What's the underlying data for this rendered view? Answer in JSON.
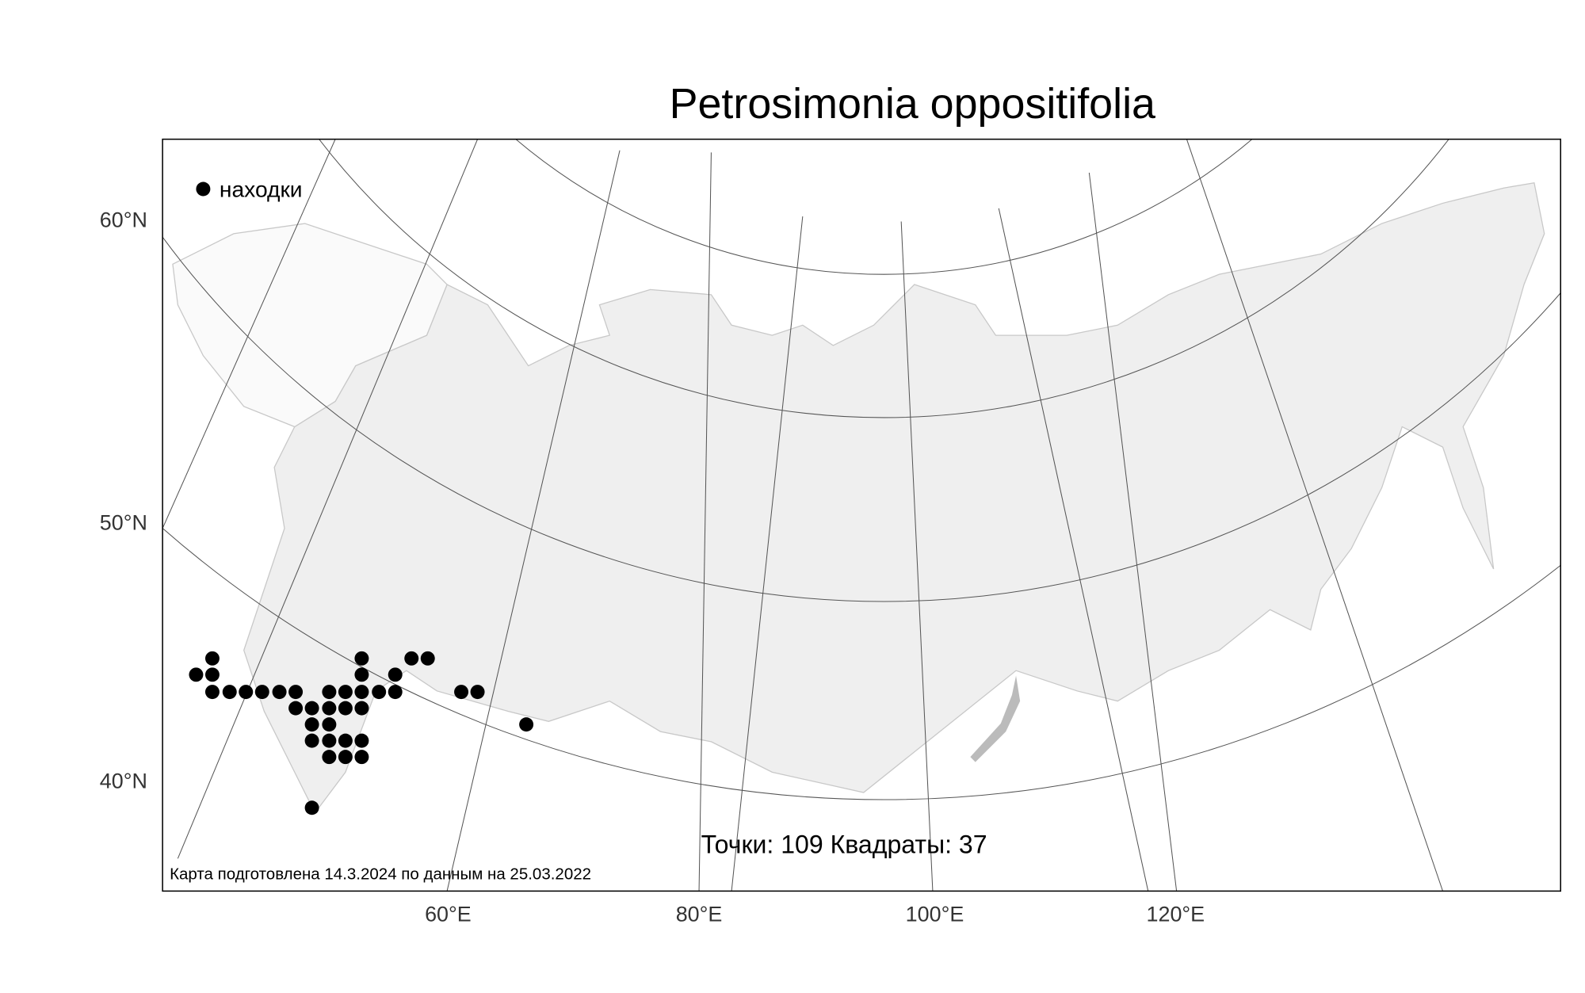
{
  "map": {
    "title": "Petrosimonia oppositifolia",
    "legend": "находки",
    "y_labels": [
      "60°N",
      "50°N",
      "40°N"
    ],
    "x_labels": [
      "60°E",
      "80°E",
      "100°E",
      "120°E"
    ],
    "stats": "Точки: 109 Квадраты: 37",
    "footnote": "Карта подготовлена 14.3.2024 по данным на 25.03.2022"
  }
}
